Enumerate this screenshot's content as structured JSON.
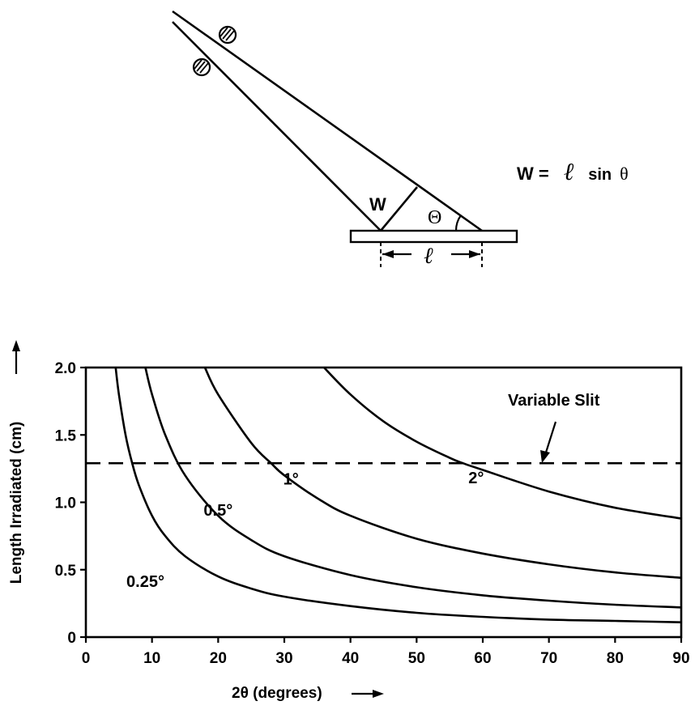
{
  "diagram": {
    "w_label": "W",
    "theta_label": "Θ",
    "l_label": "ℓ",
    "formula": {
      "lhs": "W =",
      "l": "ℓ",
      "sin": "sin",
      "theta": "θ"
    }
  },
  "chart_data": {
    "type": "line",
    "xlabel": "2θ (degrees)",
    "ylabel": "Length Irradiated (cm)",
    "xlim": [
      0,
      90
    ],
    "ylim": [
      0,
      2.0
    ],
    "x_ticks": [
      0,
      10,
      20,
      30,
      40,
      50,
      60,
      70,
      80,
      90
    ],
    "x_tick_labels": [
      "0",
      "10",
      "20",
      "30",
      "40",
      "50",
      "60",
      "70",
      "80",
      "90"
    ],
    "y_ticks": [
      0,
      0.5,
      1.0,
      1.5,
      2.0
    ],
    "y_tick_labels": [
      "0",
      "0.5",
      "1.0",
      "1.5",
      "2.0"
    ],
    "grid": false,
    "series": [
      {
        "name": "0.25°",
        "x": [
          4.5,
          5,
          6,
          7,
          8,
          10,
          12,
          15,
          20,
          25,
          30,
          40,
          50,
          60,
          70,
          80,
          90
        ],
        "y": [
          2.0,
          1.8,
          1.5,
          1.29,
          1.13,
          0.9,
          0.75,
          0.6,
          0.45,
          0.36,
          0.3,
          0.23,
          0.18,
          0.15,
          0.13,
          0.12,
          0.11
        ]
      },
      {
        "name": "0.5°",
        "x": [
          9,
          10,
          12,
          15,
          20,
          25,
          30,
          40,
          50,
          60,
          70,
          80,
          90
        ],
        "y": [
          2.0,
          1.8,
          1.5,
          1.2,
          0.9,
          0.72,
          0.6,
          0.46,
          0.37,
          0.31,
          0.27,
          0.24,
          0.22
        ]
      },
      {
        "name": "1°",
        "x": [
          18,
          20,
          25,
          28,
          30,
          35,
          40,
          50,
          60,
          70,
          80,
          90
        ],
        "y": [
          2.0,
          1.8,
          1.44,
          1.29,
          1.2,
          1.03,
          0.9,
          0.73,
          0.62,
          0.54,
          0.48,
          0.44
        ]
      },
      {
        "name": "2°",
        "x": [
          36,
          40,
          45,
          50,
          55,
          57,
          60,
          70,
          80,
          90
        ],
        "y": [
          2.0,
          1.8,
          1.6,
          1.45,
          1.33,
          1.29,
          1.24,
          1.08,
          0.96,
          0.88
        ]
      }
    ],
    "series_labels": [
      {
        "text": "0.25°",
        "x": 9,
        "y": 0.42
      },
      {
        "text": "0.5°",
        "x": 20,
        "y": 0.95
      },
      {
        "text": "1°",
        "x": 31,
        "y": 1.18
      },
      {
        "text": "2°",
        "x": 59,
        "y": 1.19
      }
    ],
    "reference_line": {
      "name": "Variable Slit",
      "y": 1.29,
      "style": "dashed"
    }
  }
}
